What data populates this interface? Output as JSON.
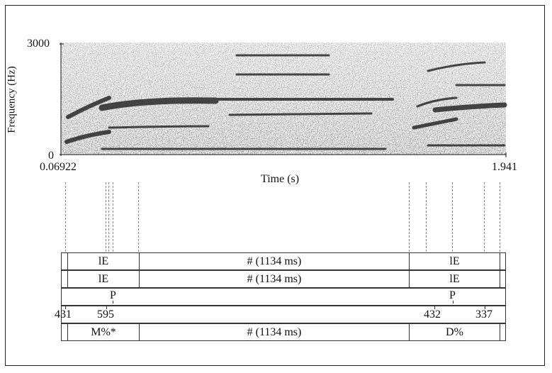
{
  "spectrogram": {
    "y_axis_label": "Frequency (Hz)",
    "y_max": "3000",
    "y_min": "0",
    "x_start": "0.06922",
    "x_end": "1.941",
    "x_axis_label": "Time (s)"
  },
  "tiers": [
    {
      "cells": [
        {
          "label": ""
        },
        {
          "label": "lE"
        },
        {
          "label": "# (1134 ms)"
        },
        {
          "label": "lE"
        },
        {
          "label": ""
        }
      ]
    },
    {
      "cells": [
        {
          "label": ""
        },
        {
          "label": "lE"
        },
        {
          "label": "# (1134 ms)"
        },
        {
          "label": "lE"
        },
        {
          "label": ""
        }
      ]
    },
    {
      "points": [
        {
          "label": "P"
        },
        {
          "label": "P"
        }
      ]
    },
    {
      "points": [
        {
          "label": "431"
        },
        {
          "label": "595"
        },
        {
          "label": "432"
        },
        {
          "label": "337"
        }
      ]
    },
    {
      "cells": [
        {
          "label": ""
        },
        {
          "label": "M%*"
        },
        {
          "label": "# (1134 ms)"
        },
        {
          "label": "D%"
        },
        {
          "label": ""
        }
      ]
    }
  ]
}
